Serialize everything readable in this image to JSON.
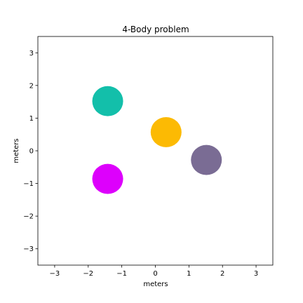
{
  "chart_data": {
    "type": "scatter",
    "title": "4-Body problem",
    "xlabel": "meters",
    "ylabel": "meters",
    "xlim": [
      -3.5,
      3.5
    ],
    "ylim": [
      -3.5,
      3.5
    ],
    "xticks": [
      -3,
      -2,
      -1,
      0,
      1,
      2,
      3
    ],
    "yticks": [
      -3,
      -2,
      -1,
      0,
      1,
      2,
      3
    ],
    "grid": false,
    "bodies": [
      {
        "x": -1.42,
        "y": 1.52,
        "radius": 0.46,
        "color": "#13bfaa"
      },
      {
        "x": 0.32,
        "y": 0.57,
        "radius": 0.46,
        "color": "#fcba03"
      },
      {
        "x": 1.52,
        "y": -0.28,
        "radius": 0.46,
        "color": "#7a6c94"
      },
      {
        "x": -1.42,
        "y": -0.86,
        "radius": 0.46,
        "color": "#dd00fc"
      }
    ]
  }
}
